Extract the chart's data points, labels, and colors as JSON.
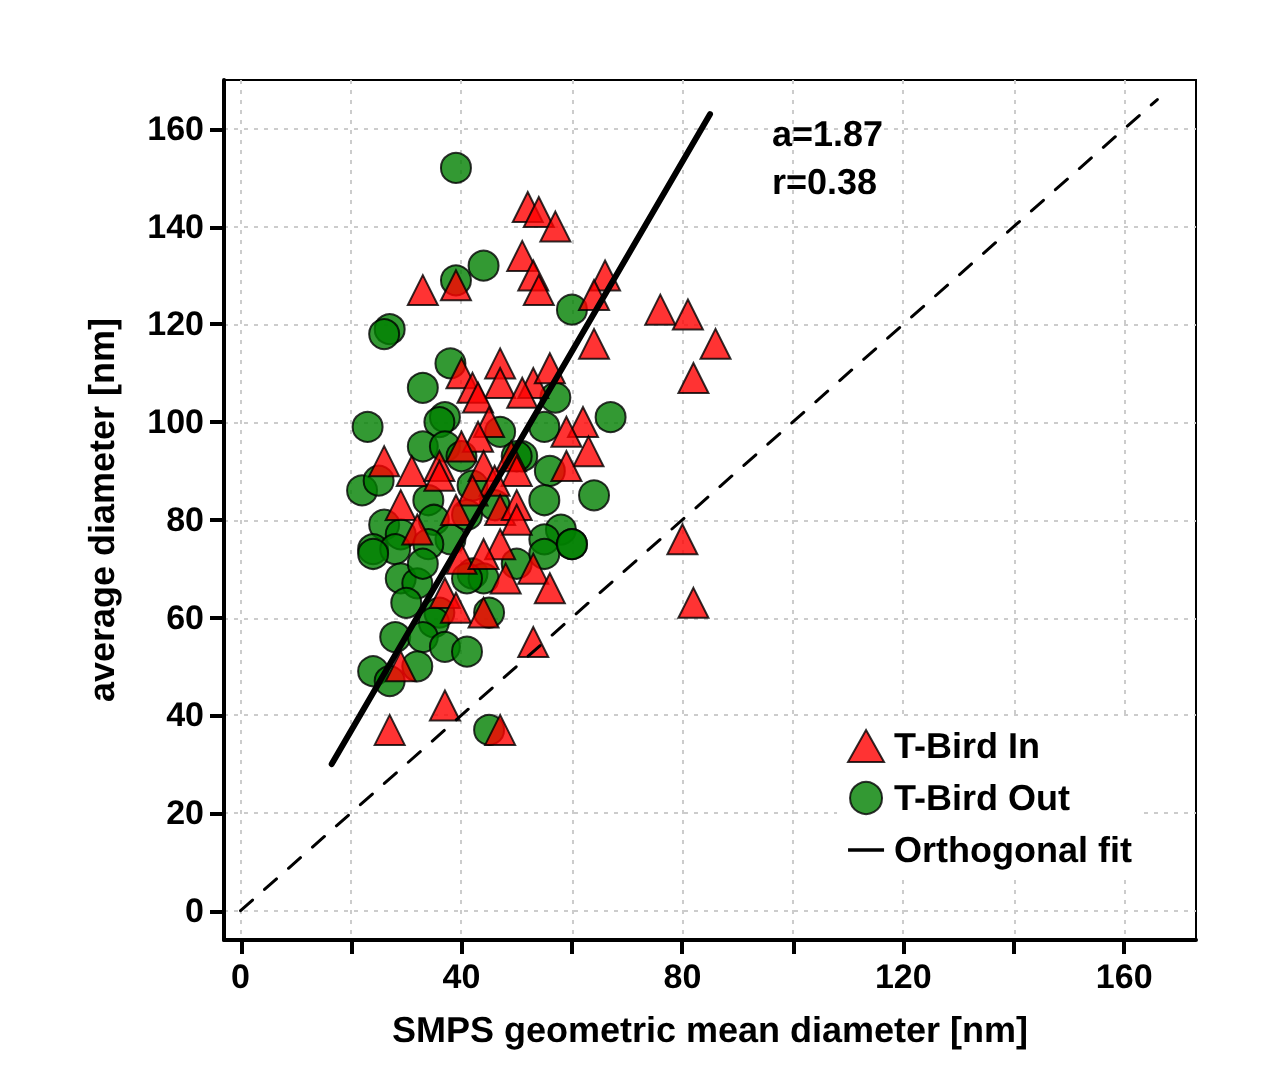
{
  "chart_data": {
    "type": "scatter",
    "xlabel": "SMPS geometric mean diameter [nm]",
    "ylabel": "average diameter [nm]",
    "xlim": [
      -3,
      173
    ],
    "ylim": [
      -6,
      170
    ],
    "xticks": [
      0,
      {
        "value": 20,
        "label": null
      },
      40,
      {
        "value": 60,
        "label": null
      },
      80,
      {
        "value": 100,
        "label": null
      },
      120,
      {
        "value": 140,
        "label": null
      },
      160
    ],
    "yticks": [
      0,
      20,
      40,
      60,
      80,
      100,
      120,
      140,
      160
    ],
    "grid": true,
    "legend": "bottom right",
    "annotations": [
      "a=1.87",
      "r=0.38"
    ],
    "series": [
      {
        "name": "T-Bird Out",
        "marker": "circle",
        "color": "#008000",
        "x": [
          39,
          44,
          39,
          60,
          27,
          26,
          38,
          33,
          57,
          67,
          23,
          37,
          36,
          55,
          33,
          37,
          40,
          51,
          56,
          22,
          25,
          64,
          34,
          42,
          55,
          26,
          29,
          35,
          38,
          58,
          55,
          60,
          24,
          28,
          24,
          29,
          32,
          34,
          33,
          42,
          44,
          50,
          55,
          60,
          30,
          36,
          35,
          28,
          33,
          37,
          41,
          32,
          24,
          27,
          45,
          45,
          41,
          47,
          50,
          46,
          41
        ],
        "values": [
          152,
          132,
          129,
          123,
          119,
          118,
          112,
          107,
          105,
          101,
          99,
          101,
          100,
          99,
          95,
          95,
          93,
          93,
          90,
          86,
          88,
          85,
          84,
          87,
          84,
          79,
          77,
          80,
          76,
          78,
          76,
          75,
          74,
          74,
          73,
          68,
          67,
          75,
          71,
          69,
          68,
          71,
          73,
          75,
          63,
          61,
          59,
          56,
          56,
          54,
          53,
          50,
          49,
          47,
          37,
          61,
          68,
          98,
          93,
          83,
          81
        ]
      },
      {
        "name": "T-Bird In",
        "marker": "triangle",
        "color": "#ff0000",
        "x": [
          52,
          54,
          57,
          51,
          53,
          54,
          66,
          64,
          76,
          81,
          64,
          82,
          86,
          33,
          39,
          47,
          40,
          42,
          47,
          53,
          56,
          51,
          43,
          45,
          62,
          59,
          63,
          43,
          40,
          26,
          31,
          36,
          36,
          44,
          49,
          50,
          59,
          46,
          42,
          29,
          39,
          47,
          50,
          50,
          32,
          47,
          80,
          40,
          44,
          48,
          53,
          56,
          37,
          39,
          44,
          53,
          29,
          37,
          27,
          47,
          82
        ],
        "values": [
          144,
          143,
          140,
          134,
          130,
          127,
          130,
          126,
          123,
          122,
          116,
          109,
          116,
          127,
          128,
          112,
          110,
          107,
          108,
          108,
          111,
          106,
          105,
          100,
          100,
          98,
          94,
          97,
          95,
          92,
          90,
          91,
          89,
          91,
          93,
          90,
          91,
          88,
          86,
          83,
          82,
          82,
          83,
          80,
          78,
          75,
          76,
          72,
          73,
          68,
          70,
          66,
          65,
          62,
          61,
          55,
          50,
          42,
          37,
          37,
          63
        ]
      },
      {
        "name": "Orthogonal fit",
        "type": "line",
        "color": "#000000",
        "line_style": "solid",
        "x": [
          16.5,
          85
        ],
        "values": [
          30,
          163
        ]
      },
      {
        "type": "line",
        "color": "#000000",
        "line_style": "dashed",
        "x": [
          0,
          166
        ],
        "values": [
          0,
          166
        ]
      }
    ]
  }
}
